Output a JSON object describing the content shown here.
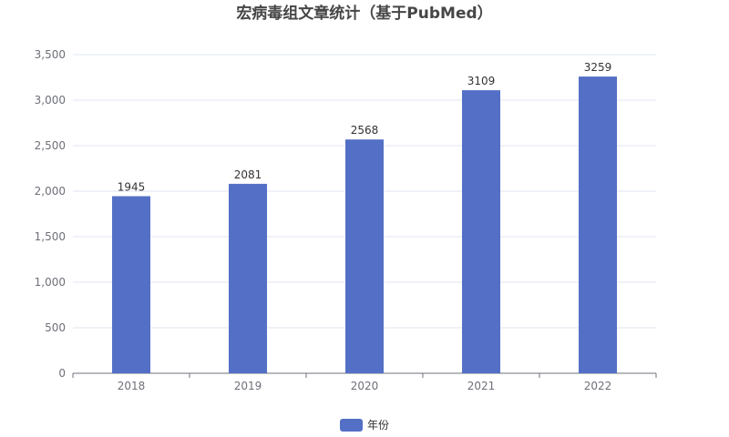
{
  "chart_data": {
    "type": "bar",
    "title": "宏病毒组文章统计（基于PubMed）",
    "categories": [
      "2018",
      "2019",
      "2020",
      "2021",
      "2022"
    ],
    "series": [
      {
        "name": "年份",
        "values": [
          1945,
          2081,
          2568,
          3109,
          3259
        ],
        "color": "#5470c6"
      }
    ],
    "ylim": [
      0,
      3500
    ],
    "yticks": [
      0,
      500,
      1000,
      1500,
      2000,
      2500,
      3000,
      3500
    ],
    "ytick_labels": [
      "0",
      "500",
      "1,000",
      "1,500",
      "2,000",
      "2,500",
      "3,000",
      "3,500"
    ],
    "grid": true,
    "legend_position": "bottom-center",
    "colors": {
      "grid": "#e0e6f1",
      "axis": "#6e7079",
      "title": "#464646"
    }
  }
}
